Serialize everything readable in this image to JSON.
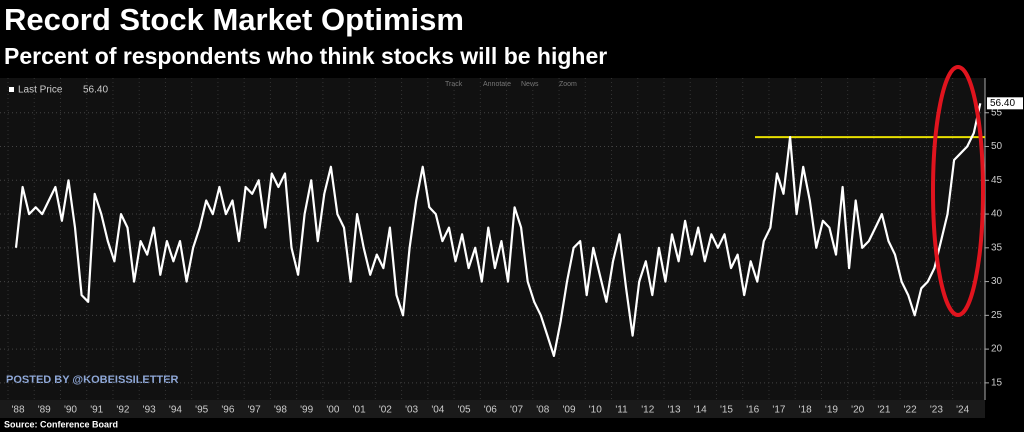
{
  "chart_data": {
    "type": "line",
    "title": "Record Stock Market Optimism",
    "subtitle": "Percent of respondents who think stocks will be higher",
    "categories": [
      "'88",
      null,
      null,
      null,
      "'89",
      null,
      null,
      null,
      "'90",
      null,
      null,
      null,
      "'91",
      null,
      null,
      null,
      "'92",
      null,
      null,
      null,
      "'93",
      null,
      null,
      null,
      "'94",
      null,
      null,
      null,
      "'95",
      null,
      null,
      null,
      "'96",
      null,
      null,
      null,
      "'97",
      null,
      null,
      null,
      "'98",
      null,
      null,
      null,
      "'99",
      null,
      null,
      null,
      "'00",
      null,
      null,
      null,
      "'01",
      null,
      null,
      null,
      "'02",
      null,
      null,
      null,
      "'03",
      null,
      null,
      null,
      "'04",
      null,
      null,
      null,
      "'05",
      null,
      null,
      null,
      "'06",
      null,
      null,
      null,
      "'07",
      null,
      null,
      null,
      "'08",
      null,
      null,
      null,
      "'09",
      null,
      null,
      null,
      "'10",
      null,
      null,
      null,
      "'11",
      null,
      null,
      null,
      "'12",
      null,
      null,
      null,
      "'13",
      null,
      null,
      null,
      "'14",
      null,
      null,
      null,
      "'15",
      null,
      null,
      null,
      "'16",
      null,
      null,
      null,
      "'17",
      null,
      null,
      null,
      "'18",
      null,
      null,
      null,
      "'19",
      null,
      null,
      null,
      "'20",
      null,
      null,
      null,
      "'21",
      null,
      null,
      null,
      "'22",
      null,
      null,
      null,
      "'23",
      null,
      null,
      null,
      "'24",
      null,
      null,
      null
    ],
    "series": [
      {
        "name": "Last Price",
        "color": "#ffffff",
        "values": [
          35,
          44,
          40,
          41,
          40,
          42,
          44,
          39,
          45,
          38,
          28,
          27,
          43,
          40,
          36,
          33,
          40,
          38,
          30,
          36,
          34,
          38,
          31,
          36,
          33,
          36,
          30,
          35,
          38,
          42,
          40,
          44,
          40,
          42,
          36,
          44,
          43,
          45,
          38,
          46,
          44,
          46,
          35,
          31,
          40,
          45,
          36,
          43,
          47,
          40,
          38,
          30,
          40,
          35,
          31,
          34,
          32,
          38,
          28,
          25,
          35,
          42,
          47,
          41,
          40,
          36,
          38,
          33,
          37,
          32,
          35,
          30,
          38,
          32,
          36,
          30,
          41,
          38,
          30,
          27,
          25,
          22,
          19,
          24,
          30,
          35,
          36,
          28,
          35,
          31,
          27,
          33,
          37,
          29,
          22,
          30,
          33,
          28,
          35,
          30,
          37,
          33,
          39,
          34,
          38,
          33,
          37,
          35,
          37,
          32,
          34,
          28,
          33,
          30,
          36,
          38,
          46,
          43,
          51.4,
          40,
          47,
          42,
          35,
          39,
          38,
          34,
          44,
          32,
          42,
          35,
          36,
          38,
          40,
          36,
          34,
          30,
          28,
          25,
          29,
          30,
          32,
          36,
          40,
          48,
          49,
          50,
          52,
          56.4
        ]
      }
    ],
    "last_value_label": "56.40",
    "reference_line": {
      "value": 51.4,
      "color": "#e8e000"
    },
    "ylim": [
      13.5,
      60
    ],
    "yticks": [
      15,
      20,
      25,
      30,
      35,
      40,
      45,
      50,
      55
    ],
    "grid": true,
    "toolbar": [
      "Track",
      "Annotate",
      "News",
      "Zoom"
    ],
    "watermark": "POSTED BY @KOBEISSILETTER",
    "source": "Source: Conference Board"
  }
}
